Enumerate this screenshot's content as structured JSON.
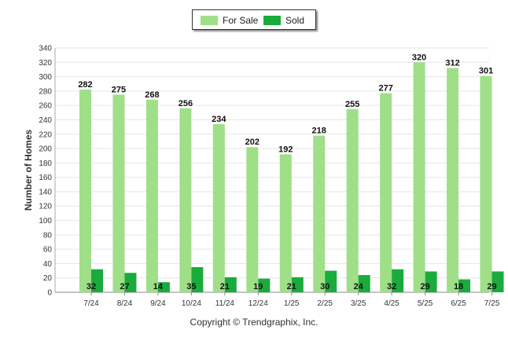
{
  "chart_data": {
    "type": "bar",
    "categories": [
      "7/24",
      "8/24",
      "9/24",
      "10/24",
      "11/24",
      "12/24",
      "1/25",
      "2/25",
      "3/25",
      "4/25",
      "5/25",
      "6/25",
      "7/25"
    ],
    "series": [
      {
        "name": "For Sale",
        "color": "#9fdf88",
        "values": [
          282,
          275,
          268,
          256,
          234,
          202,
          192,
          218,
          255,
          277,
          320,
          312,
          301
        ]
      },
      {
        "name": "Sold",
        "color": "#1aab3c",
        "values": [
          32,
          27,
          14,
          35,
          21,
          19,
          21,
          30,
          24,
          32,
          29,
          18,
          29
        ]
      }
    ],
    "ylabel": "Number of Homes",
    "xlabel": "",
    "ylim": [
      0,
      340
    ],
    "yticks": [
      0,
      20,
      40,
      60,
      80,
      100,
      120,
      140,
      160,
      180,
      200,
      220,
      240,
      260,
      280,
      300,
      320,
      340
    ],
    "grid": true,
    "legend": "top-center"
  },
  "footer": {
    "copyright": "Copyright © Trendgraphix, Inc."
  }
}
